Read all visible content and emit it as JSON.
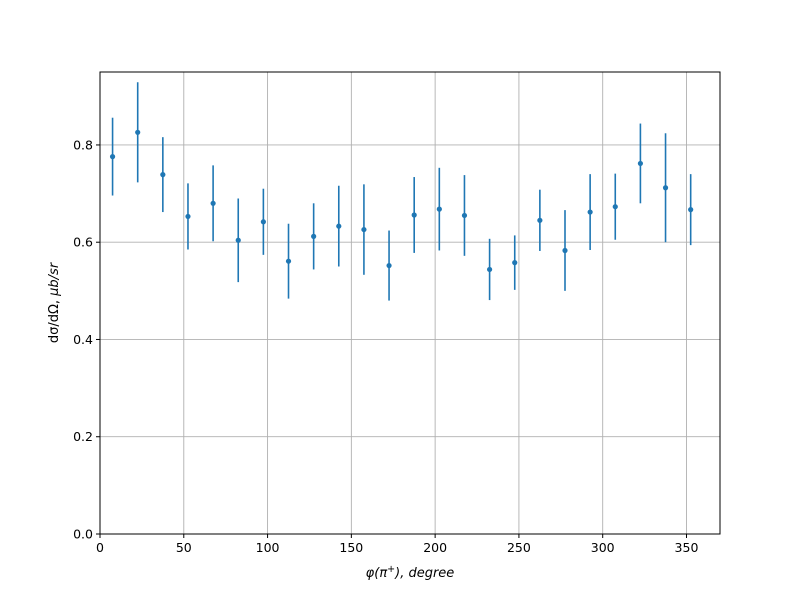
{
  "chart_data": {
    "type": "scatter",
    "title": "",
    "xlabel_parts": [
      "φ(",
      "π",
      "+",
      "), degree"
    ],
    "ylabel_parts": [
      "dσ/dΩ, ",
      "μb/sr"
    ],
    "xlim": [
      0,
      370
    ],
    "ylim": [
      0,
      0.95
    ],
    "xticks": [
      0,
      50,
      100,
      150,
      200,
      250,
      300,
      350
    ],
    "yticks": [
      0.0,
      0.2,
      0.4,
      0.6,
      0.8
    ],
    "xtick_labels": [
      "0",
      "50",
      "100",
      "150",
      "200",
      "250",
      "300",
      "350"
    ],
    "ytick_labels": [
      "0.0",
      "0.2",
      "0.4",
      "0.6",
      "0.8"
    ],
    "grid": true,
    "marker_color": "#1f77b4",
    "series": [
      {
        "x": [
          7.5,
          22.5,
          37.5,
          52.5,
          67.5,
          82.5,
          97.5,
          112.5,
          127.5,
          142.5,
          157.5,
          172.5,
          187.5,
          202.5,
          217.5,
          232.5,
          247.5,
          262.5,
          277.5,
          292.5,
          307.5,
          322.5,
          337.5,
          352.5
        ],
        "y": [
          0.776,
          0.826,
          0.739,
          0.653,
          0.68,
          0.604,
          0.642,
          0.561,
          0.612,
          0.633,
          0.626,
          0.552,
          0.656,
          0.668,
          0.655,
          0.544,
          0.558,
          0.645,
          0.583,
          0.662,
          0.673,
          0.762,
          0.712,
          0.667
        ],
        "yerr": [
          0.08,
          0.103,
          0.077,
          0.068,
          0.078,
          0.086,
          0.068,
          0.077,
          0.068,
          0.083,
          0.093,
          0.072,
          0.078,
          0.085,
          0.083,
          0.063,
          0.056,
          0.063,
          0.083,
          0.078,
          0.068,
          0.082,
          0.112,
          0.073
        ]
      }
    ]
  }
}
